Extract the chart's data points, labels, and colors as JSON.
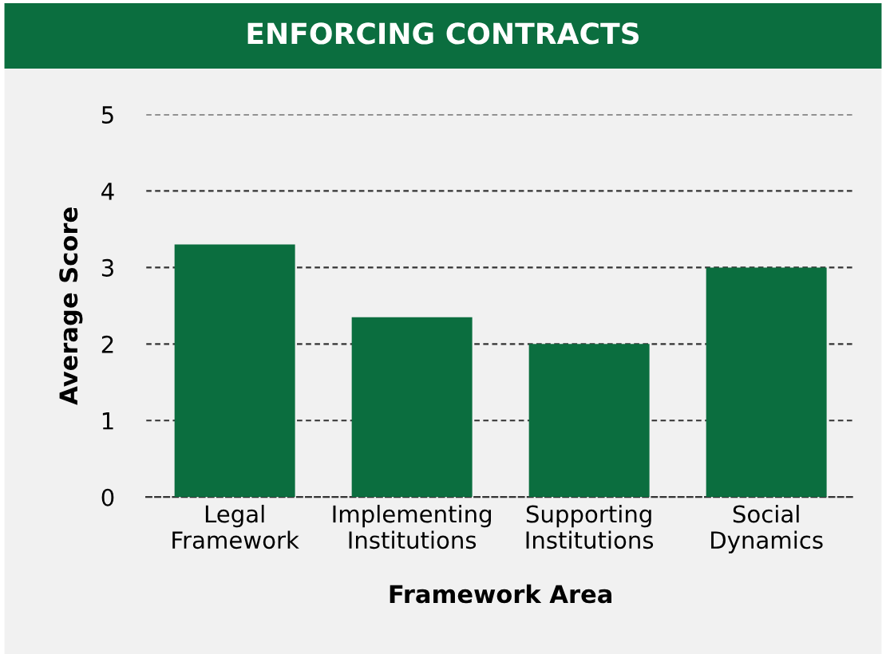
{
  "chart_data": {
    "type": "bar",
    "title": "ENFORCING CONTRACTS",
    "xlabel": "Framework Area",
    "ylabel": "Average Score",
    "categories": [
      "Legal\nFramework",
      "Implementing\nInstitutions",
      "Supporting\nInstitutions",
      "Social\nDynamics"
    ],
    "values": [
      3.3,
      2.35,
      2.0,
      3.0
    ],
    "color": "#0b6e3f",
    "ylim": [
      0,
      5
    ],
    "yticks": [
      0,
      1,
      2,
      3,
      4,
      5
    ],
    "grid": "y"
  }
}
